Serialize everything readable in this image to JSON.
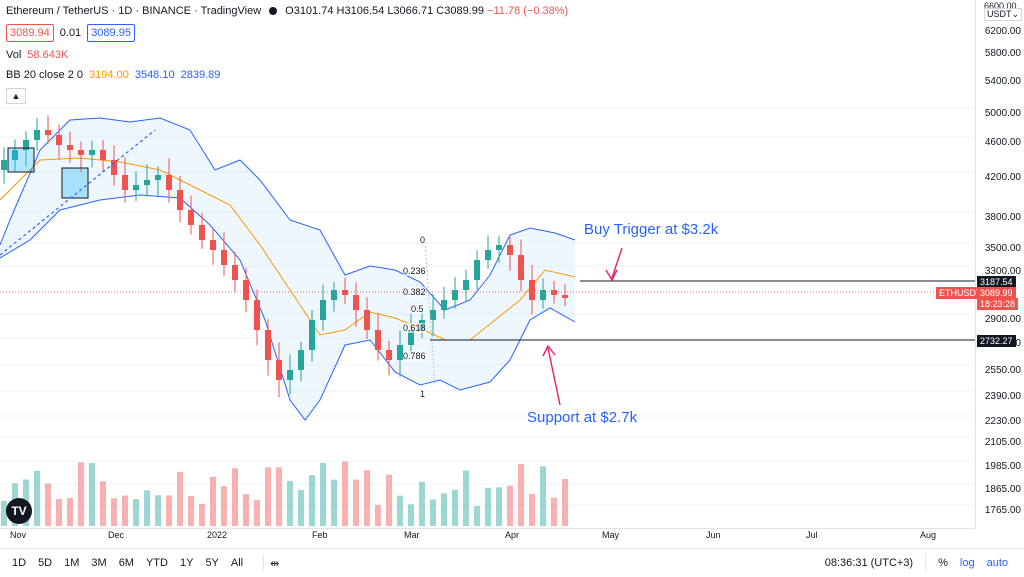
{
  "legend": {
    "symbol": "Ethereum / TetherUS · 1D · BINANCE · TradingView",
    "open": "O3101.74",
    "high": "H3106.54",
    "low": "L3066.71",
    "close": "C3089.99",
    "change": "−11.78 (−0.38%)",
    "bid": "3089.94",
    "spread": "0.01",
    "ask": "3089.95",
    "vol_label": "Vol",
    "vol_value": "58.643K",
    "bb_label": "BB 20 close 2 0",
    "bb_basis": "3194.00",
    "bb_upper": "3548.10",
    "bb_lower": "2839.89"
  },
  "price_axis": {
    "currency": "USDT",
    "top_label": "6600.00",
    "labels": [
      "6200.00",
      "5800.00",
      "5400.00",
      "5000.00",
      "4600.00",
      "4200.00",
      "3800.00",
      "3500.00",
      "3300.00",
      "2900.00",
      "2710.00",
      "2550.00",
      "2390.00",
      "2230.00",
      "2105.00",
      "1985.00",
      "1865.00",
      "1765.00"
    ],
    "buy_level": "3187.54",
    "support_level": "2732.27",
    "ticker_tag": "ETHUSDT",
    "last_price": "3089.99",
    "countdown": "18:23:28"
  },
  "time_axis": [
    "Nov",
    "Dec",
    "2022",
    "Feb",
    "Mar",
    "Apr",
    "May",
    "Jun",
    "Jul",
    "Aug"
  ],
  "fib_levels": [
    "0",
    "0.236",
    "0.382",
    "0.5",
    "0.618",
    "0.786",
    "1"
  ],
  "annotations": {
    "buy": "Buy Trigger at $3.2k",
    "support": "Support at $2.7k"
  },
  "bottom_bar": {
    "ranges": [
      "1D",
      "5D",
      "1M",
      "3M",
      "6M",
      "YTD",
      "1Y",
      "5Y",
      "All"
    ],
    "time": "08:36:31 (UTC+3)",
    "percent": "%",
    "log": "log",
    "auto": "auto"
  },
  "colors": {
    "up": "#26a69a",
    "down": "#ef5350",
    "band": "#2962ff",
    "basis": "#ff9800",
    "accent": "#2962ff"
  }
}
